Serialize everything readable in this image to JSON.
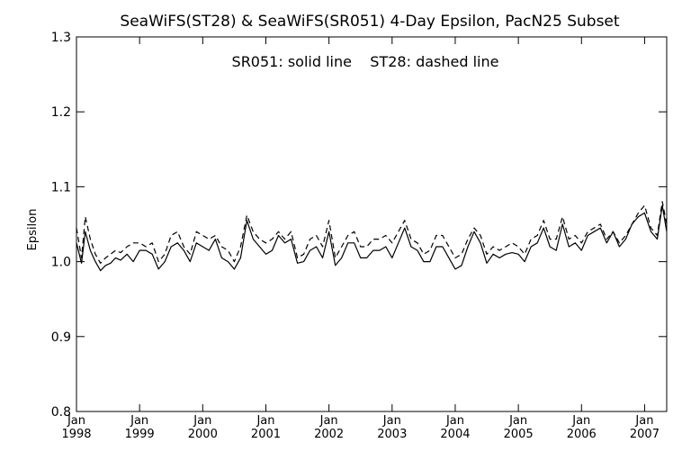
{
  "chart_data": {
    "type": "line",
    "title": "SeaWiFS(ST28) & SeaWiFS(SR051) 4-Day Epsilon, PacN25 Subset",
    "annotation": "SR051: solid line    ST28: dashed line",
    "xlabel": "",
    "ylabel": "Epsilon",
    "ylim": [
      0.8,
      1.3
    ],
    "xlim": [
      1998.0,
      2007.35
    ],
    "yticks": [
      "0.8",
      "0.9",
      "1.0",
      "1.1",
      "1.2",
      "1.3"
    ],
    "xticks": [
      {
        "month": "Jan",
        "year": "1998",
        "value": 1998
      },
      {
        "month": "Jan",
        "year": "1999",
        "value": 1999
      },
      {
        "month": "Jan",
        "year": "2000",
        "value": 2000
      },
      {
        "month": "Jan",
        "year": "2001",
        "value": 2001
      },
      {
        "month": "Jan",
        "year": "2002",
        "value": 2002
      },
      {
        "month": "Jan",
        "year": "2003",
        "value": 2003
      },
      {
        "month": "Jan",
        "year": "2004",
        "value": 2004
      },
      {
        "month": "Jan",
        "year": "2005",
        "value": 2005
      },
      {
        "month": "Jan",
        "year": "2006",
        "value": 2006
      },
      {
        "month": "Jan",
        "year": "2007",
        "value": 2007
      }
    ],
    "grid": false,
    "series": [
      {
        "name": "SR051",
        "style": "solid",
        "x": [
          1998.0,
          1998.08,
          1998.14,
          1998.22,
          1998.3,
          1998.38,
          1998.46,
          1998.54,
          1998.62,
          1998.7,
          1998.8,
          1998.9,
          1999.0,
          1999.1,
          1999.2,
          1999.3,
          1999.4,
          1999.5,
          1999.6,
          1999.7,
          1999.8,
          1999.9,
          2000.0,
          2000.1,
          2000.2,
          2000.3,
          2000.4,
          2000.5,
          2000.6,
          2000.7,
          2000.8,
          2000.9,
          2001.0,
          2001.1,
          2001.2,
          2001.3,
          2001.4,
          2001.5,
          2001.6,
          2001.7,
          2001.8,
          2001.9,
          2002.0,
          2002.1,
          2002.2,
          2002.3,
          2002.4,
          2002.5,
          2002.6,
          2002.7,
          2002.8,
          2002.9,
          2003.0,
          2003.1,
          2003.2,
          2003.3,
          2003.4,
          2003.5,
          2003.6,
          2003.7,
          2003.8,
          2003.9,
          2004.0,
          2004.1,
          2004.2,
          2004.3,
          2004.4,
          2004.5,
          2004.6,
          2004.7,
          2004.8,
          2004.9,
          2005.0,
          2005.1,
          2005.2,
          2005.3,
          2005.4,
          2005.5,
          2005.6,
          2005.7,
          2005.8,
          2005.9,
          2006.0,
          2006.1,
          2006.2,
          2006.3,
          2006.4,
          2006.5,
          2006.6,
          2006.7,
          2006.8,
          2006.9,
          2007.0,
          2007.1,
          2007.2,
          2007.28,
          2007.35
        ],
        "y": [
          1.025,
          0.998,
          1.04,
          1.015,
          1.0,
          0.988,
          0.995,
          0.998,
          1.005,
          1.002,
          1.01,
          1.0,
          1.015,
          1.015,
          1.01,
          0.99,
          1.0,
          1.02,
          1.025,
          1.015,
          1.0,
          1.025,
          1.02,
          1.015,
          1.03,
          1.005,
          1.0,
          0.99,
          1.005,
          1.055,
          1.03,
          1.02,
          1.01,
          1.015,
          1.035,
          1.025,
          1.03,
          0.998,
          1.0,
          1.015,
          1.02,
          1.005,
          1.04,
          0.995,
          1.005,
          1.025,
          1.025,
          1.005,
          1.005,
          1.015,
          1.015,
          1.02,
          1.005,
          1.025,
          1.045,
          1.02,
          1.015,
          1.0,
          1.0,
          1.02,
          1.02,
          1.005,
          0.99,
          0.995,
          1.02,
          1.04,
          1.025,
          0.998,
          1.01,
          1.005,
          1.01,
          1.012,
          1.01,
          1.0,
          1.02,
          1.025,
          1.045,
          1.02,
          1.015,
          1.05,
          1.02,
          1.025,
          1.015,
          1.035,
          1.04,
          1.045,
          1.025,
          1.04,
          1.02,
          1.03,
          1.05,
          1.06,
          1.065,
          1.04,
          1.03,
          1.075,
          1.04
        ]
      },
      {
        "name": "ST28",
        "style": "dashed",
        "x": [
          1998.0,
          1998.08,
          1998.14,
          1998.22,
          1998.3,
          1998.38,
          1998.46,
          1998.54,
          1998.62,
          1998.7,
          1998.8,
          1998.9,
          1999.0,
          1999.1,
          1999.2,
          1999.3,
          1999.4,
          1999.5,
          1999.6,
          1999.7,
          1999.8,
          1999.9,
          2000.0,
          2000.1,
          2000.2,
          2000.3,
          2000.4,
          2000.5,
          2000.6,
          2000.7,
          2000.8,
          2000.9,
          2001.0,
          2001.1,
          2001.2,
          2001.3,
          2001.4,
          2001.5,
          2001.6,
          2001.7,
          2001.8,
          2001.9,
          2002.0,
          2002.1,
          2002.2,
          2002.3,
          2002.4,
          2002.5,
          2002.6,
          2002.7,
          2002.8,
          2002.9,
          2003.0,
          2003.1,
          2003.2,
          2003.3,
          2003.4,
          2003.5,
          2003.6,
          2003.7,
          2003.8,
          2003.9,
          2004.0,
          2004.1,
          2004.2,
          2004.3,
          2004.4,
          2004.5,
          2004.6,
          2004.7,
          2004.8,
          2004.9,
          2005.0,
          2005.1,
          2005.2,
          2005.3,
          2005.4,
          2005.5,
          2005.6,
          2005.7,
          2005.8,
          2005.9,
          2006.0,
          2006.1,
          2006.2,
          2006.3,
          2006.4,
          2006.5,
          2006.6,
          2006.7,
          2006.8,
          2006.9,
          2007.0,
          2007.1,
          2007.2,
          2007.28,
          2007.35
        ],
        "y": [
          1.045,
          1.005,
          1.06,
          1.03,
          1.01,
          0.998,
          1.005,
          1.01,
          1.015,
          1.012,
          1.02,
          1.025,
          1.025,
          1.02,
          1.025,
          1.0,
          1.01,
          1.035,
          1.04,
          1.02,
          1.01,
          1.04,
          1.035,
          1.03,
          1.035,
          1.02,
          1.015,
          1.0,
          1.02,
          1.062,
          1.04,
          1.03,
          1.025,
          1.03,
          1.04,
          1.03,
          1.04,
          1.005,
          1.01,
          1.03,
          1.035,
          1.02,
          1.055,
          1.005,
          1.02,
          1.035,
          1.04,
          1.02,
          1.02,
          1.03,
          1.03,
          1.035,
          1.025,
          1.04,
          1.055,
          1.03,
          1.025,
          1.01,
          1.015,
          1.035,
          1.035,
          1.02,
          1.005,
          1.01,
          1.03,
          1.045,
          1.035,
          1.01,
          1.02,
          1.015,
          1.02,
          1.025,
          1.02,
          1.01,
          1.03,
          1.035,
          1.055,
          1.03,
          1.03,
          1.06,
          1.03,
          1.035,
          1.025,
          1.04,
          1.045,
          1.05,
          1.03,
          1.04,
          1.025,
          1.035,
          1.05,
          1.065,
          1.075,
          1.045,
          1.035,
          1.08,
          1.05
        ]
      }
    ]
  }
}
